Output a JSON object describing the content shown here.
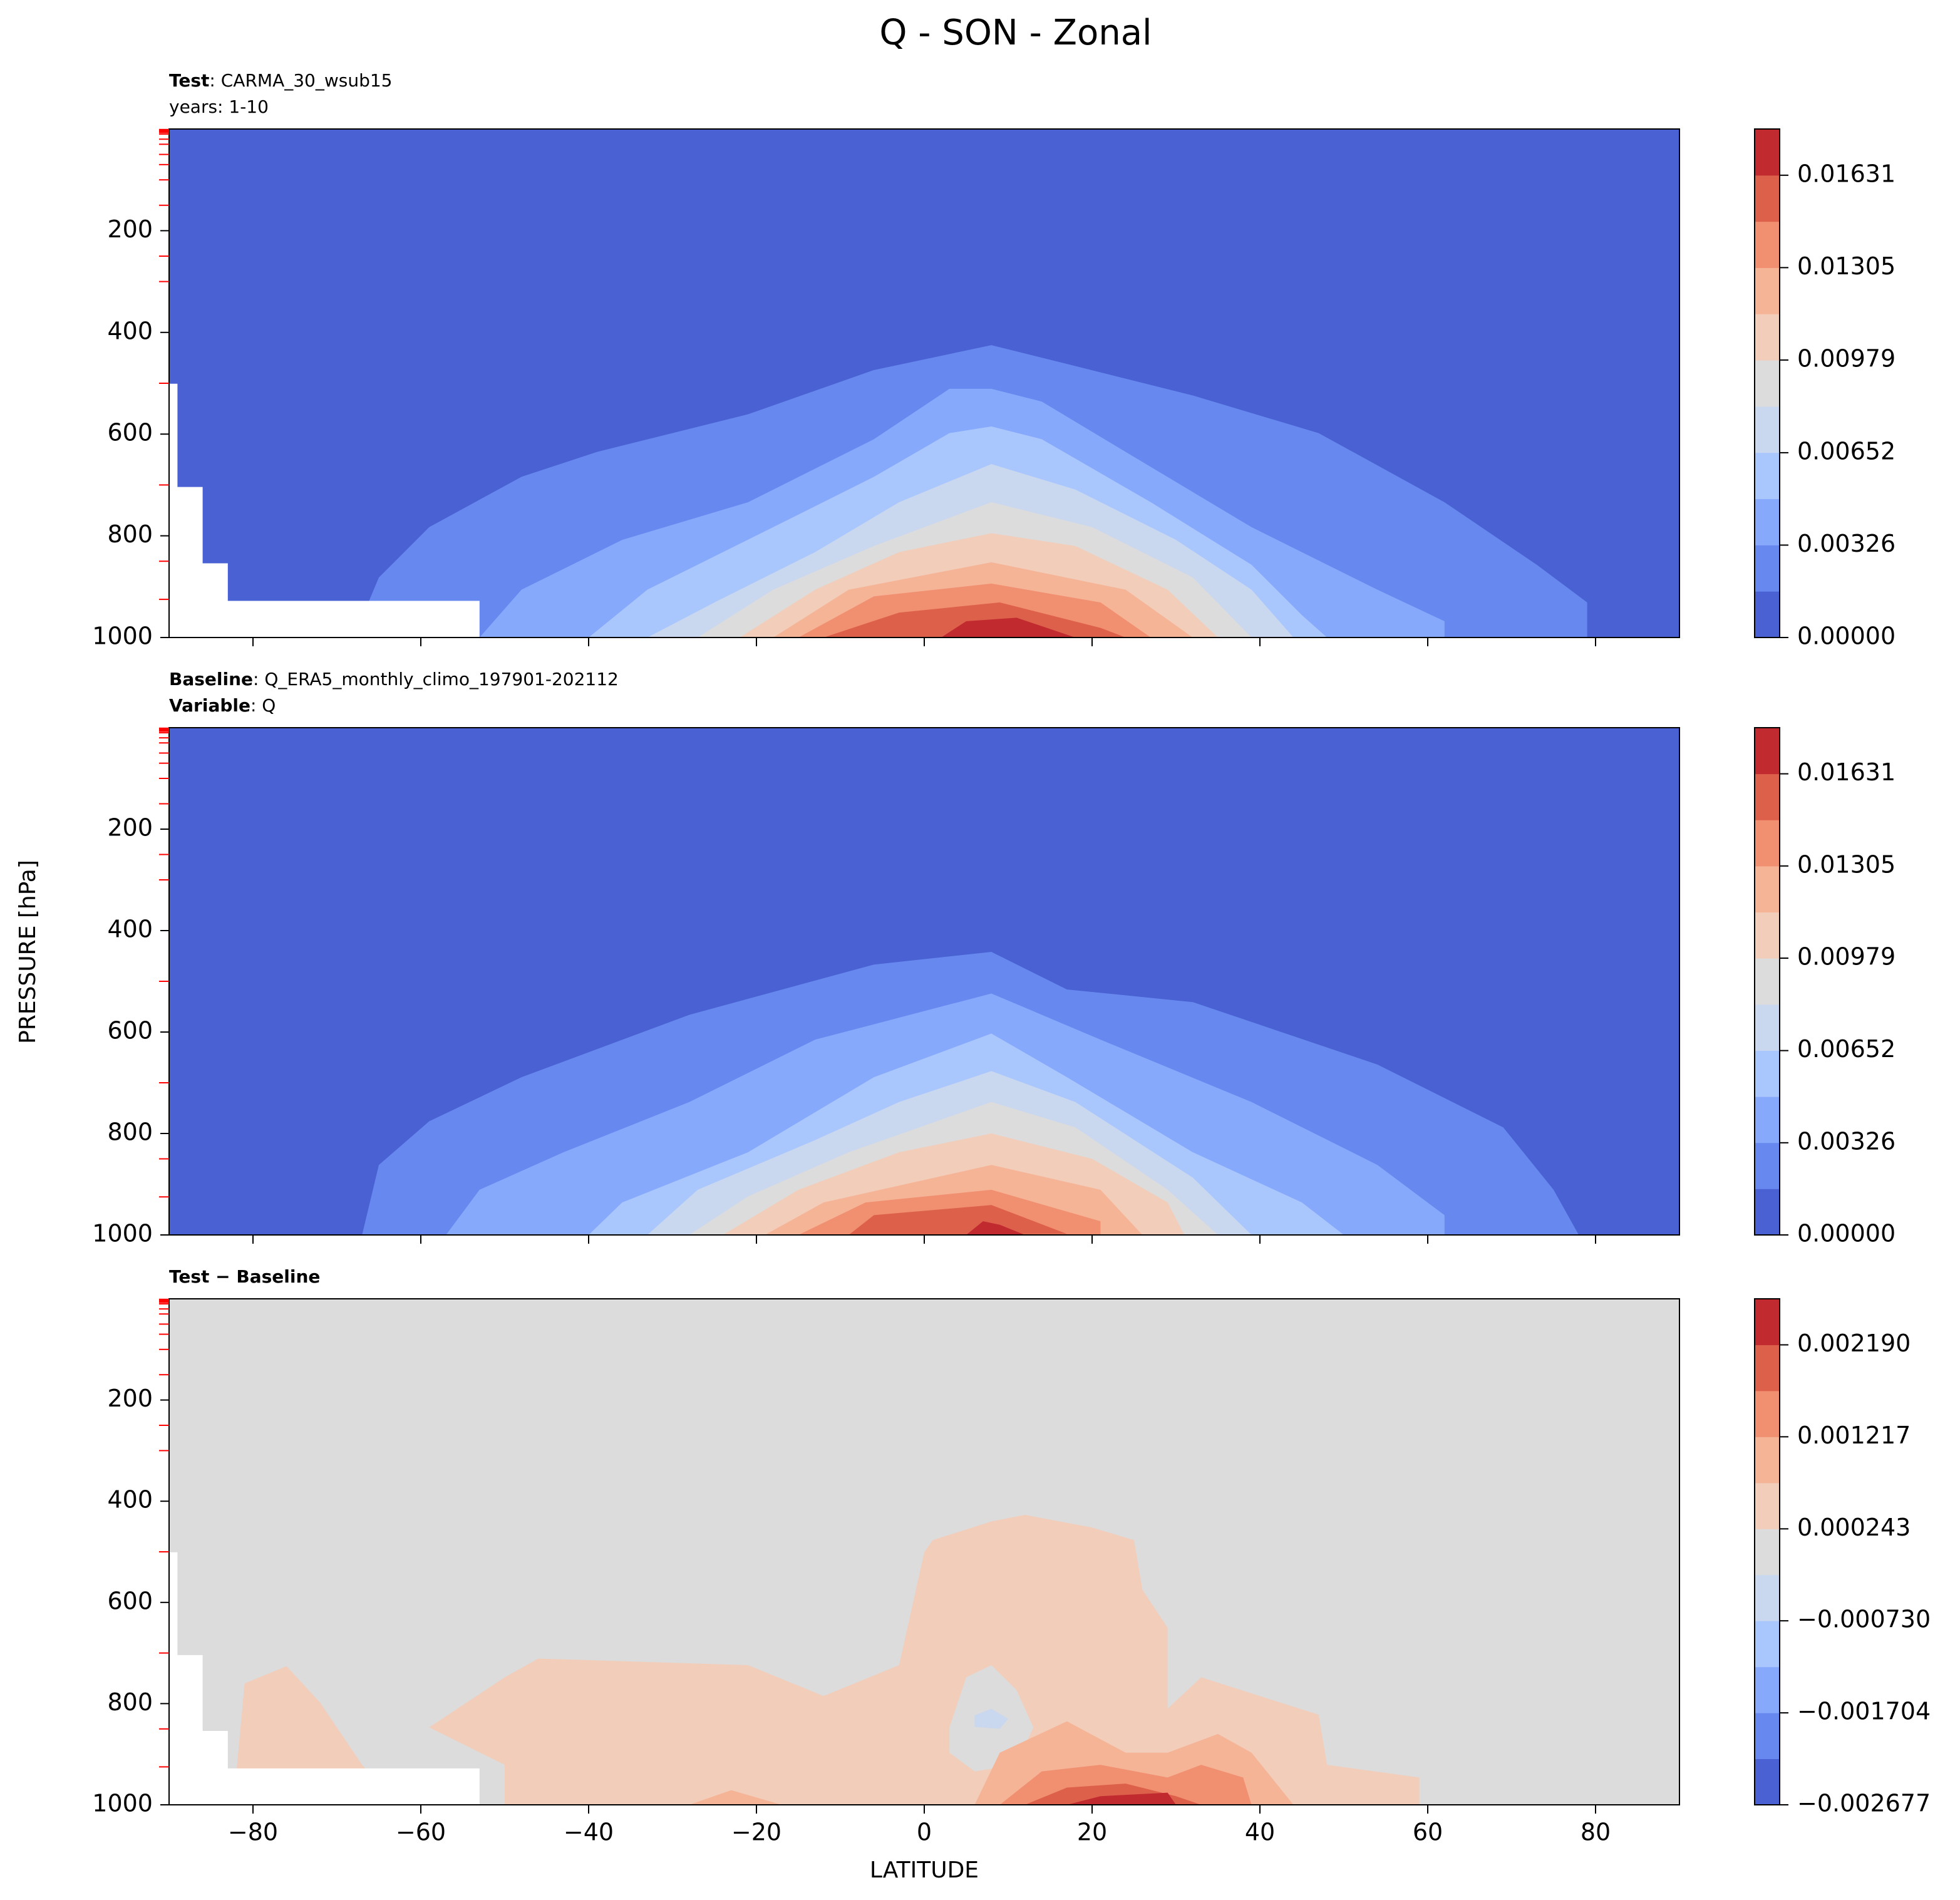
{
  "figure": {
    "title": "Q - SON - Zonal",
    "xlabel": "LATITUDE",
    "ylabel": "PRESSURE [hPa]"
  },
  "chart_data": [
    {
      "type": "contour",
      "title_lines": [
        [
          {
            "text": "Test",
            "bold": true
          },
          {
            "text": ": CARMA_30_wsub15"
          }
        ],
        [
          {
            "text": "years: 1-10"
          }
        ]
      ],
      "xlim": [
        -90,
        90
      ],
      "xticks": [
        -80,
        -60,
        -40,
        -20,
        0,
        20,
        40,
        60,
        80
      ],
      "xticklabels": false,
      "ylim": [
        1000,
        0
      ],
      "yticks": [
        200,
        400,
        600,
        800,
        1000
      ],
      "minor_yticks": [
        1,
        2,
        3,
        5,
        7,
        10,
        20,
        30,
        50,
        70,
        100,
        150,
        250,
        300,
        500,
        700,
        850,
        925
      ],
      "minor_tick_color": "#ff0000",
      "levels": [
        0,
        0.001631,
        0.003262,
        0.004893,
        0.006524,
        0.008155,
        0.009786,
        0.011417,
        0.013048,
        0.014679,
        0.01631,
        0.017941
      ],
      "colors": [
        "#4961d2",
        "#6788ee",
        "#87a9fc",
        "#aac7fd",
        "#c9d8ef",
        "#dddcdc",
        "#f1cdba",
        "#f6b497",
        "#f18f71",
        "#dd604b",
        "#c12b30"
      ],
      "background_level": 0,
      "cbar_ticks": [
        {
          "value": 0,
          "label": "0.00000"
        },
        0.00326,
        0.00652,
        0.00979,
        0.01305,
        0.01631
      ],
      "contours": [
        {
          "level": 1,
          "lat": [
            -68,
            -65,
            -59,
            -48,
            -39,
            -21,
            -6,
            8,
            17,
            32,
            47,
            62,
            73,
            79,
            79
          ],
          "p": [
            1000,
            882,
            783,
            684,
            635,
            561,
            474,
            425,
            462,
            524,
            598,
            734,
            857,
            931,
            1000
          ]
        },
        {
          "level": 2,
          "lat": [
            -53,
            -48,
            -36,
            -21,
            -6,
            3,
            8,
            14,
            24,
            39,
            54,
            62,
            62
          ],
          "p": [
            1000,
            906,
            808,
            734,
            610,
            511,
            511,
            536,
            635,
            783,
            906,
            968,
            1000
          ]
        },
        {
          "level": 3,
          "lat": [
            -40,
            -33,
            -18,
            -6,
            3,
            8,
            14,
            27,
            39,
            45,
            48
          ],
          "p": [
            1000,
            906,
            783,
            684,
            598,
            585,
            610,
            734,
            857,
            956,
            1000
          ]
        },
        {
          "level": 4,
          "lat": [
            -33,
            -25,
            -13,
            -3,
            8,
            18,
            30,
            39,
            44
          ],
          "p": [
            1000,
            931,
            832,
            734,
            659,
            709,
            808,
            906,
            1000
          ]
        },
        {
          "level": 5,
          "lat": [
            -27,
            -18,
            -6,
            8,
            20,
            32,
            39
          ],
          "p": [
            1000,
            906,
            820,
            734,
            783,
            882,
            1000
          ]
        },
        {
          "level": 6,
          "lat": [
            -22,
            -13,
            -3,
            8,
            18,
            29,
            35
          ],
          "p": [
            1000,
            906,
            832,
            795,
            820,
            906,
            1000
          ]
        },
        {
          "level": 7,
          "lat": [
            -18,
            -9,
            8,
            24,
            32
          ],
          "p": [
            1000,
            906,
            852,
            906,
            1000
          ]
        },
        {
          "level": 8,
          "lat": [
            -15,
            -6,
            8,
            21,
            27
          ],
          "p": [
            1000,
            919,
            894,
            931,
            1000
          ]
        },
        {
          "level": 9,
          "lat": [
            -12,
            -3,
            9,
            21,
            24
          ],
          "p": [
            1000,
            951,
            931,
            981,
            1000
          ]
        },
        {
          "level": 10,
          "lat": [
            2,
            5,
            11,
            18
          ],
          "p": [
            1000,
            968,
            961,
            1000
          ]
        }
      ],
      "mask": {
        "color": "#ffffff",
        "lat": [
          -90,
          -89,
          -89,
          -86,
          -86,
          -83,
          -83,
          -53,
          -53,
          -90
        ],
        "p": [
          501,
          501,
          704,
          704,
          854,
          854,
          928,
          928,
          1000,
          1000
        ]
      }
    },
    {
      "type": "contour",
      "title_lines": [
        [
          {
            "text": "Baseline",
            "bold": true
          },
          {
            "text": ": Q_ERA5_monthly_climo_197901-202112"
          }
        ],
        [
          {
            "text": "Variable",
            "bold": true
          },
          {
            "text": ": Q"
          }
        ]
      ],
      "xlim": [
        -90,
        90
      ],
      "xticks": [
        -80,
        -60,
        -40,
        -20,
        0,
        20,
        40,
        60,
        80
      ],
      "xticklabels": false,
      "ylim": [
        1000,
        0
      ],
      "yticks": [
        200,
        400,
        600,
        800,
        1000
      ],
      "minor_yticks": [
        1,
        2,
        3,
        5,
        7,
        10,
        20,
        30,
        50,
        70,
        100,
        150,
        250,
        300,
        500,
        700,
        850,
        925
      ],
      "minor_tick_color": "#ff0000",
      "levels": [
        0,
        0.001631,
        0.003262,
        0.004893,
        0.006524,
        0.008155,
        0.009786,
        0.011417,
        0.013048,
        0.014679,
        0.01631,
        0.017941
      ],
      "colors": [
        "#4961d2",
        "#6788ee",
        "#87a9fc",
        "#aac7fd",
        "#c9d8ef",
        "#dddcdc",
        "#f1cdba",
        "#f6b497",
        "#f18f71",
        "#dd604b",
        "#c12b30"
      ],
      "background_level": 0,
      "cbar_ticks": [
        {
          "value": 0,
          "label": "0.00000"
        },
        0.00326,
        0.00652,
        0.00979,
        0.01305,
        0.01631
      ],
      "contours": [
        {
          "level": 1,
          "lat": [
            -67,
            -65,
            -59,
            -48,
            -28,
            -6,
            8,
            17,
            32,
            54,
            69,
            75,
            78
          ],
          "p": [
            1000,
            862,
            776,
            689,
            566,
            467,
            442,
            516,
            541,
            664,
            788,
            911,
            1000
          ]
        },
        {
          "level": 2,
          "lat": [
            -57,
            -53,
            -43,
            -28,
            -13,
            8,
            21,
            39,
            54,
            62,
            62
          ],
          "p": [
            1000,
            911,
            837,
            738,
            615,
            524,
            615,
            738,
            862,
            961,
            1000
          ]
        },
        {
          "level": 3,
          "lat": [
            -40,
            -36,
            -21,
            -6,
            8,
            17,
            32,
            45,
            50
          ],
          "p": [
            1000,
            936,
            837,
            689,
            603,
            689,
            837,
            936,
            1000
          ]
        },
        {
          "level": 4,
          "lat": [
            -33,
            -27,
            -13,
            -3,
            8,
            18,
            32,
            39
          ],
          "p": [
            1000,
            911,
            813,
            738,
            677,
            738,
            887,
            1000
          ]
        },
        {
          "level": 5,
          "lat": [
            -28,
            -21,
            -9,
            8,
            18,
            29,
            35
          ],
          "p": [
            1000,
            924,
            837,
            738,
            788,
            911,
            1000
          ]
        },
        {
          "level": 6,
          "lat": [
            -24,
            -15,
            -3,
            8,
            20,
            29,
            31
          ],
          "p": [
            1000,
            911,
            837,
            800,
            850,
            936,
            1000
          ]
        },
        {
          "level": 7,
          "lat": [
            -19,
            -12,
            8,
            21,
            26
          ],
          "p": [
            1000,
            936,
            862,
            911,
            1000
          ]
        },
        {
          "level": 8,
          "lat": [
            -15,
            -7,
            8,
            21,
            21
          ],
          "p": [
            1000,
            936,
            911,
            973,
            1000
          ]
        },
        {
          "level": 9,
          "lat": [
            -9,
            -6,
            8,
            17
          ],
          "p": [
            1000,
            961,
            941,
            998
          ]
        },
        {
          "level": 10,
          "lat": [
            5,
            7,
            9,
            12
          ],
          "p": [
            1000,
            973,
            980,
            1000
          ]
        }
      ]
    },
    {
      "type": "contour",
      "title_lines": [
        [
          {
            "text": "Test − Baseline",
            "bold": true
          }
        ]
      ],
      "xlim": [
        -90,
        90
      ],
      "xticks": [
        {
          "value": -80,
          "label": "−80"
        },
        {
          "value": -60,
          "label": "−60"
        },
        {
          "value": -40,
          "label": "−40"
        },
        {
          "value": -20,
          "label": "−20"
        },
        0,
        20,
        40,
        60,
        80
      ],
      "xticklabels": true,
      "ylim": [
        1000,
        0
      ],
      "yticks": [
        200,
        400,
        600,
        800,
        1000
      ],
      "minor_yticks": [
        1,
        2,
        3,
        5,
        7,
        10,
        20,
        30,
        50,
        70,
        100,
        150,
        250,
        300,
        500,
        700,
        850,
        925
      ],
      "minor_tick_color": "#ff0000",
      "levels": [
        -0.002677,
        -0.00219,
        -0.001704,
        -0.001217,
        -0.00073,
        -0.000243,
        0.000243,
        0.00073,
        0.001217,
        0.001704,
        0.00219,
        0.002677
      ],
      "colors": [
        "#4961d2",
        "#6788ee",
        "#87a9fc",
        "#aac7fd",
        "#c9d8ef",
        "#dddcdc",
        "#f1cdba",
        "#f6b497",
        "#f18f71",
        "#dd604b",
        "#c12b30"
      ],
      "background_level": 5,
      "cbar_ticks": [
        {
          "value": -0.002677,
          "label": "−0.002677"
        },
        {
          "value": -0.001704,
          "label": "−0.001704"
        },
        {
          "value": -0.00073,
          "label": "−0.000730"
        },
        0.000243,
        0.001217,
        {
          "value": 0.00219,
          "label": "0.002190"
        }
      ],
      "contours": [
        {
          "level": 6,
          "lat": [
            -82,
            -81,
            -76,
            -72,
            -67,
            -66
          ],
          "p": [
            940,
            760,
            726,
            798,
            921,
            940
          ]
        },
        {
          "level": 6,
          "lat": [
            -59,
            -50,
            -46,
            -21,
            -12,
            -3,
            0,
            1,
            8,
            12,
            20,
            25,
            26,
            29,
            29,
            33,
            47,
            48,
            59,
            59,
            -50,
            -50
          ],
          "p": [
            847,
            748,
            711,
            724,
            785,
            724,
            501,
            477,
            440,
            427,
            452,
            477,
            575,
            650,
            810,
            748,
            822,
            921,
            946,
            1000,
            1000,
            921
          ]
        },
        {
          "level": 5,
          "lat": [
            3,
            5,
            8,
            11,
            13,
            11,
            6,
            3
          ],
          "p": [
            847,
            748,
            724,
            773,
            847,
            921,
            934,
            897
          ]
        },
        {
          "level": 4,
          "lat": [
            6,
            8,
            10,
            9,
            6
          ],
          "p": [
            823,
            810,
            830,
            850,
            846
          ]
        },
        {
          "level": 7,
          "lat": [
            -28,
            -23,
            -17
          ],
          "p": [
            1000,
            971,
            1000
          ]
        },
        {
          "level": 7,
          "lat": [
            6,
            9,
            17,
            24,
            29,
            35,
            39,
            44
          ],
          "p": [
            1000,
            897,
            835,
            897,
            897,
            860,
            897,
            1000
          ]
        },
        {
          "level": 8,
          "lat": [
            9,
            14,
            21,
            29,
            33,
            38,
            39
          ],
          "p": [
            1000,
            934,
            921,
            946,
            921,
            946,
            1000
          ]
        },
        {
          "level": 9,
          "lat": [
            12,
            17,
            24,
            30,
            33
          ],
          "p": [
            1000,
            966,
            958,
            983,
            1000
          ]
        },
        {
          "level": 10,
          "lat": [
            17,
            21,
            29,
            30
          ],
          "p": [
            1000,
            983,
            976,
            1000
          ]
        }
      ],
      "mask": {
        "color": "#ffffff",
        "lat": [
          -90,
          -89,
          -89,
          -86,
          -86,
          -83,
          -83,
          -53,
          -53,
          -90
        ],
        "p": [
          501,
          501,
          704,
          704,
          854,
          854,
          928,
          928,
          1000,
          1000
        ]
      }
    }
  ]
}
